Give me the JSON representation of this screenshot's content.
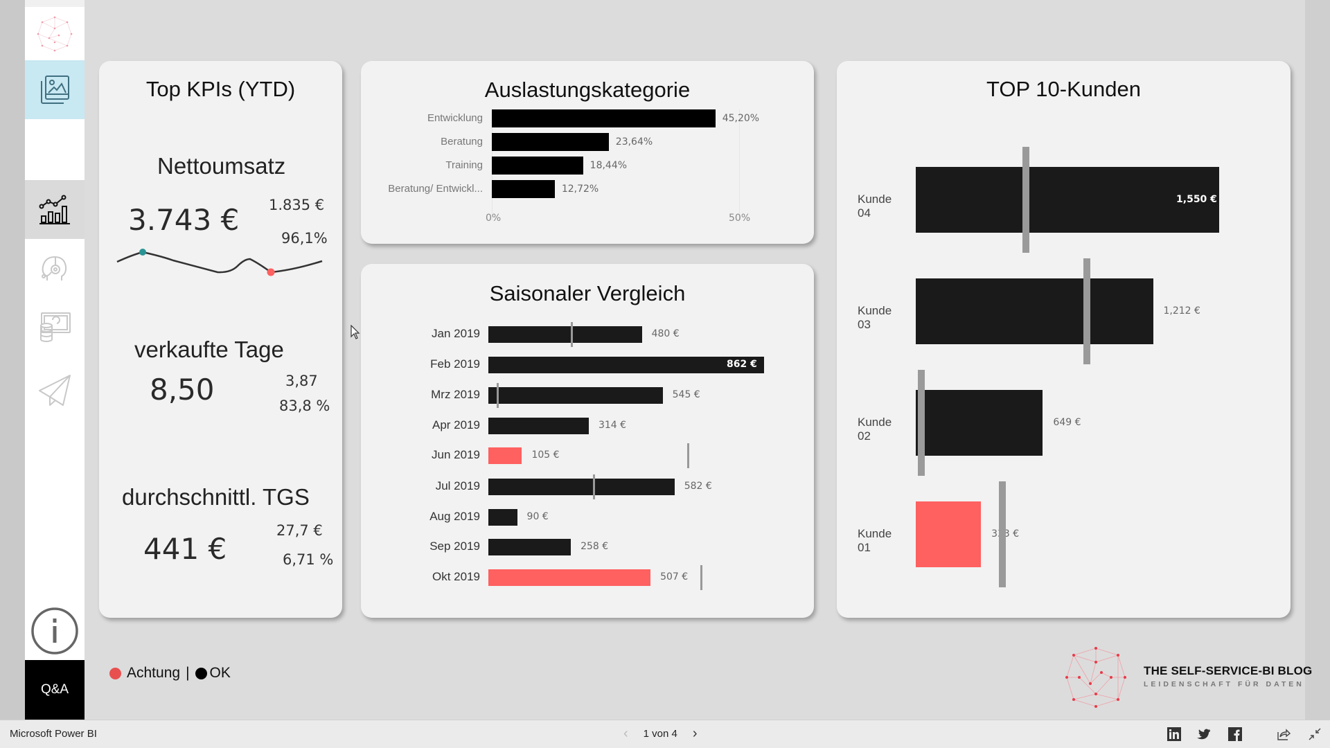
{
  "app": {
    "title": "Microsoft Power BI"
  },
  "pager": {
    "current": "1 von 4",
    "prev": "‹",
    "next": "›"
  },
  "colors": {
    "alert": "#ff6060",
    "ok": "#000000",
    "bar": "#1a1a1a",
    "target": "#999999",
    "accent_selected": "#c8e8f2",
    "sparkline_high": "#2a9494"
  },
  "sidebar": {
    "items": [
      {
        "name": "logo-network-icon"
      },
      {
        "name": "gallery-image-icon",
        "active": true
      },
      {
        "name": "blank"
      },
      {
        "name": "chart-analytics-icon",
        "active": true
      },
      {
        "name": "support-headset-icon"
      },
      {
        "name": "money-database-icon"
      },
      {
        "name": "paper-plane-icon"
      }
    ],
    "info_icon": "info-icon",
    "qa_label": "Q&A"
  },
  "kpi": {
    "title": "Top KPIs (YTD)",
    "nettoumsatz": {
      "label": "Nettoumsatz",
      "value": "3.743 €",
      "compare": "1.835 €",
      "pct": "96,1%"
    },
    "verkaufte_tage": {
      "label": "verkaufte Tage",
      "value": "8,50",
      "compare": "3,87",
      "pct": "83,8 %"
    },
    "tgs": {
      "label": "durchschnittl. TGS",
      "value": "441 €",
      "compare": "27,7 €",
      "pct": "6,71 %"
    }
  },
  "legend": {
    "achtung": "Achtung",
    "separator": "|",
    "ok": "OK"
  },
  "logo": {
    "title": "THE SELF-SERVICE-BI BLOG",
    "subtitle": "LEIDENSCHAFT FÜR DATEN"
  },
  "chart_data": [
    {
      "type": "bar",
      "orientation": "horizontal",
      "title": "Auslastungskategorie",
      "categories": [
        "Entwicklung",
        "Beratung",
        "Training",
        "Beratung/ Entwickl..."
      ],
      "values": [
        45.2,
        23.64,
        18.44,
        12.72
      ],
      "value_labels": [
        "45,20%",
        "23,64%",
        "18,44%",
        "12,72%"
      ],
      "xlim": [
        0,
        50
      ],
      "x_ticks": [
        "0%",
        "50%"
      ],
      "unit": "%"
    },
    {
      "type": "bar",
      "orientation": "horizontal",
      "title": "Saisonaler Vergleich",
      "categories": [
        "Jan 2019",
        "Feb 2019",
        "Mrz 2019",
        "Apr 2019",
        "Jun 2019",
        "Jul 2019",
        "Aug 2019",
        "Sep 2019",
        "Okt 2019"
      ],
      "values": [
        480,
        862,
        545,
        314,
        105,
        582,
        90,
        258,
        507
      ],
      "value_labels": [
        "480 €",
        "862 €",
        "545 €",
        "314 €",
        "105 €",
        "582 €",
        "90 €",
        "258 €",
        "507 €"
      ],
      "targets": [
        260,
        null,
        28,
        null,
        623,
        329,
        null,
        null,
        665
      ],
      "status": [
        "ok",
        "ok",
        "ok",
        "ok",
        "alert",
        "ok",
        "ok",
        "ok",
        "alert"
      ],
      "unit": "€"
    },
    {
      "type": "bar",
      "orientation": "horizontal",
      "title": "TOP 10-Kunden",
      "categories": [
        "Kunde 04",
        "Kunde 03",
        "Kunde 02",
        "Kunde 01"
      ],
      "values": [
        1550,
        1212,
        649,
        333
      ],
      "value_labels": [
        "1,550 €",
        "1,212 €",
        "649 €",
        "333 €"
      ],
      "targets": [
        563,
        875,
        28,
        442
      ],
      "status": [
        "ok",
        "ok",
        "ok",
        "alert"
      ],
      "unit": "€"
    }
  ],
  "sparkline": {
    "points": [
      [
        169,
        378
      ],
      [
        206,
        364
      ],
      [
        250,
        376
      ],
      [
        314,
        393
      ],
      [
        354,
        374
      ],
      [
        391,
        393
      ],
      [
        465,
        377
      ]
    ],
    "high_index": 1,
    "low_index": 5
  },
  "footer_icons": [
    "linkedin-icon",
    "twitter-icon",
    "facebook-icon",
    "share-icon",
    "exit-fullscreen-icon"
  ]
}
